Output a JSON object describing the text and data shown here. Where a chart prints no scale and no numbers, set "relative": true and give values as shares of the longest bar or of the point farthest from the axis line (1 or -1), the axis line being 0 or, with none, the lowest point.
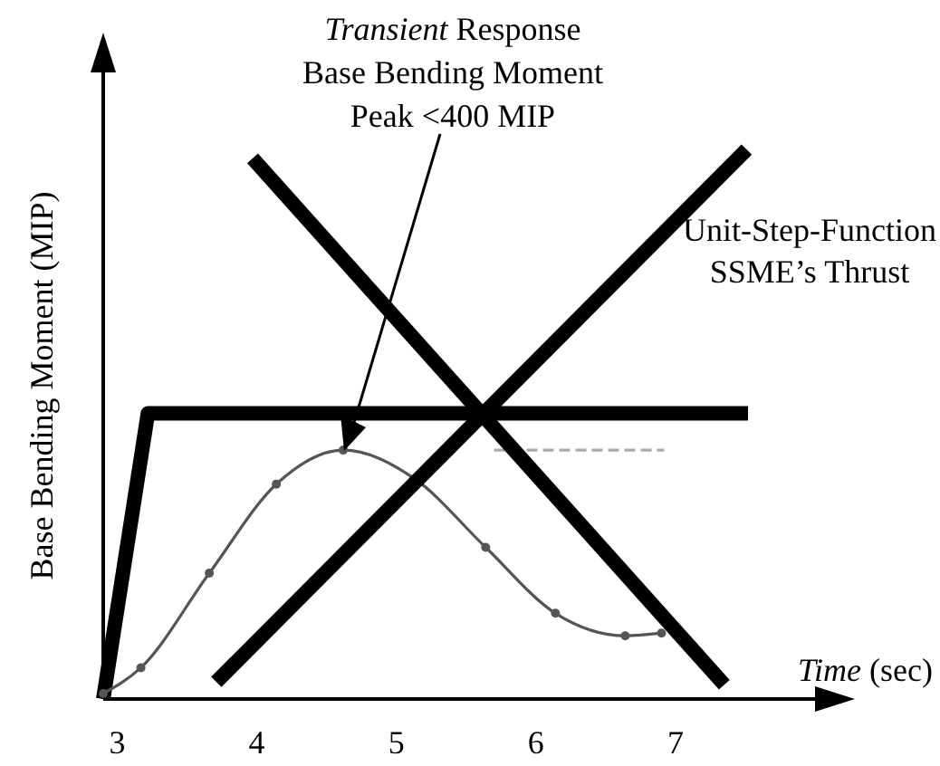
{
  "chart_data": {
    "type": "line",
    "relative": true,
    "xlabel": "Time (sec)",
    "ylabel": "Base Bending Moment (MIP)",
    "xlim": [
      2.9,
      8
    ],
    "xticks": [
      3,
      4,
      5,
      6,
      7
    ],
    "series": [
      {
        "color": "#000000",
        "x": [
          2.9,
          3.22,
          7.52
        ],
        "values": [
          0,
          0.52,
          0.52
        ],
        "marker": "none",
        "line_style": "solid"
      },
      {
        "color": "#555555",
        "x": [
          2.9,
          3.17,
          3.66,
          4.14,
          4.62,
          5.13,
          5.64,
          6.14,
          6.64,
          6.9
        ],
        "values": [
          0.01,
          0.057,
          0.229,
          0.391,
          0.453,
          0.401,
          0.276,
          0.156,
          0.115,
          0.12
        ],
        "marker": "circle",
        "line_style": "solid"
      },
      {
        "color": "#aaaaaa",
        "x": [
          5.7,
          6.92
        ],
        "values": [
          0.453,
          0.453
        ],
        "marker": "none",
        "line_style": "dashed"
      },
      {
        "color": "#000000",
        "x": [
          3.97,
          7.35
        ],
        "values": [
          0.984,
          0.026
        ],
        "marker": "none",
        "line_style": "solid"
      },
      {
        "color": "#000000",
        "x": [
          3.71,
          7.51
        ],
        "values": [
          0.031,
          1
        ],
        "marker": "none",
        "line_style": "solid"
      }
    ],
    "annotations": [
      "Transient Response\nBase Bending Moment\nPeak <400 MIP",
      "Unit-Step-Function\nSSME’s Thrust"
    ]
  }
}
